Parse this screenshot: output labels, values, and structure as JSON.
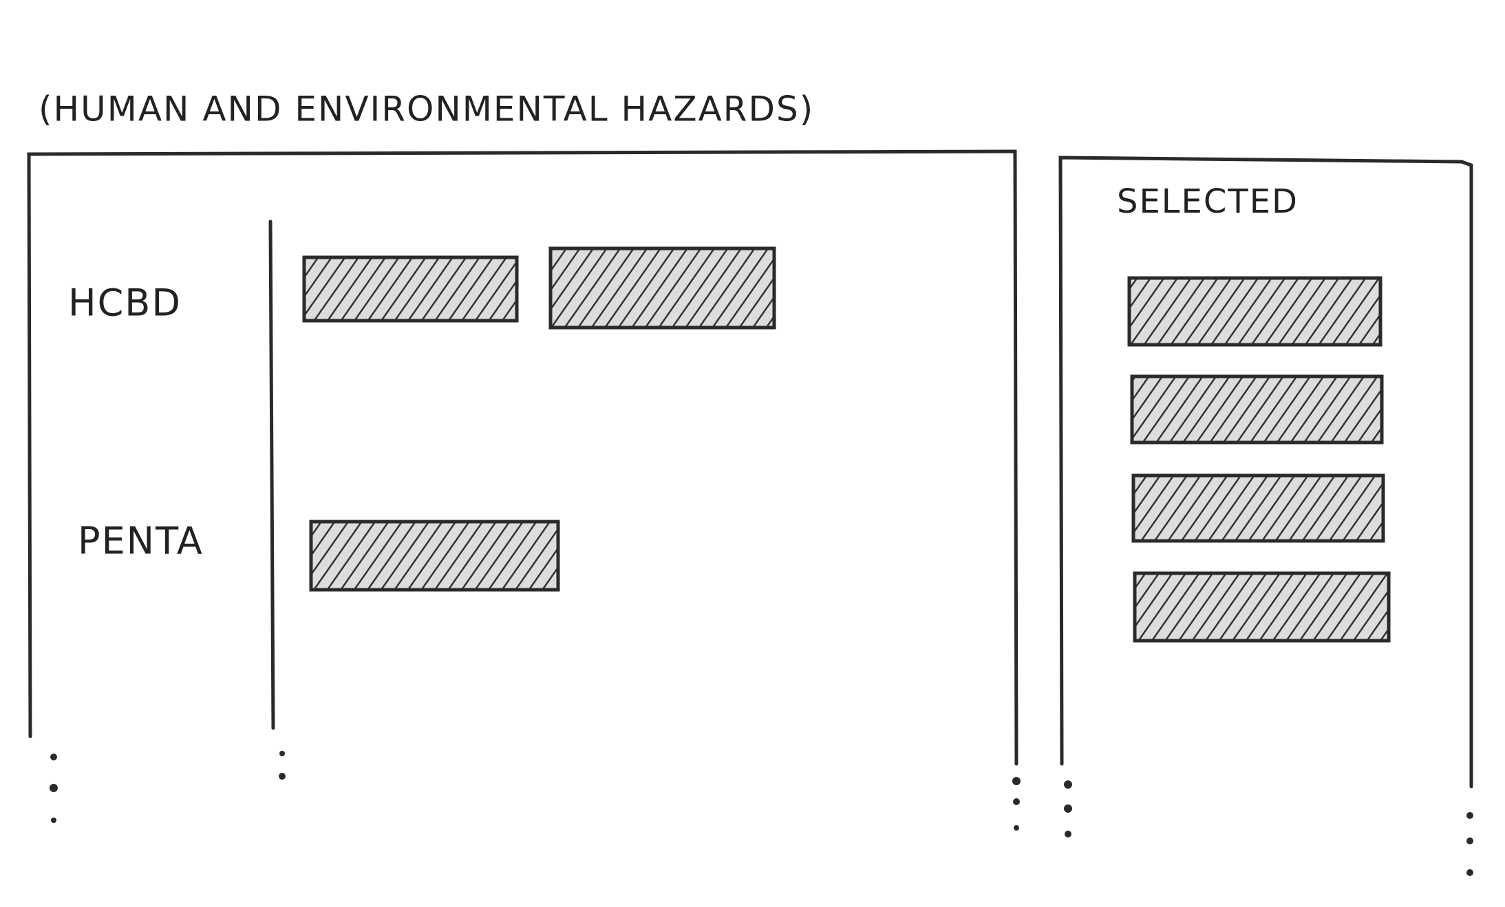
{
  "header": {
    "title": "(HUMAN AND ENVIRONMENTAL HAZARDS)"
  },
  "rows": [
    {
      "label": "HCBD"
    },
    {
      "label": "PENTA"
    }
  ],
  "selected": {
    "title": "SELECTED"
  }
}
